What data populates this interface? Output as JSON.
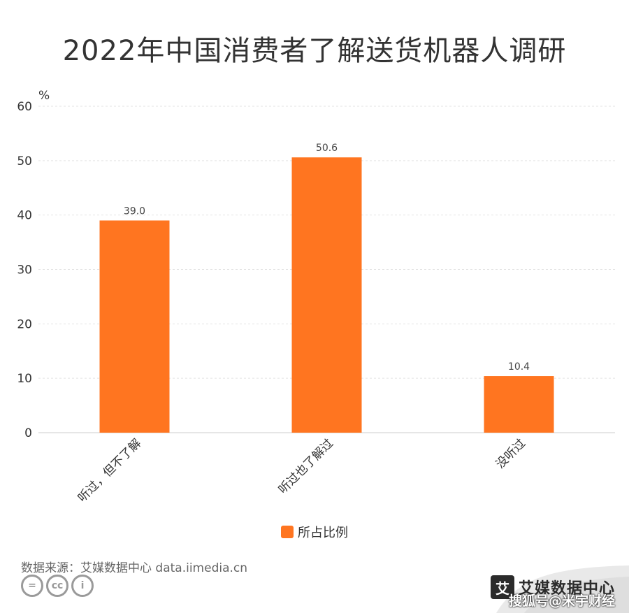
{
  "page_title": "2022年中国消费者了解送货机器人调研",
  "chart_data": {
    "type": "bar",
    "title": "2022年中国消费者了解送货机器人调研",
    "categories": [
      "听过，但不了解",
      "听过也了解过",
      "没听过"
    ],
    "series": [
      {
        "name": "所占比例",
        "values": [
          39.0,
          50.6,
          10.4
        ],
        "labels": [
          "39.0",
          "50.6",
          "10.4"
        ]
      }
    ],
    "y_unit": "%",
    "ylim": [
      0,
      60
    ],
    "yticks": [
      0,
      10,
      20,
      30,
      40,
      50,
      60
    ],
    "grid": true,
    "legend_position": "bottom-center",
    "bar_color": "#ff7520"
  },
  "source": "数据来源：艾媒数据中心 data.iimedia.cn",
  "license_icons": [
    "equals-icon",
    "cc-icon",
    "person-icon"
  ],
  "license_text": [
    "=",
    "cc",
    "i"
  ],
  "brand": {
    "logo_char": "艾",
    "name": "艾媒数据中心"
  },
  "watermark": "搜狐号@米宇财经"
}
